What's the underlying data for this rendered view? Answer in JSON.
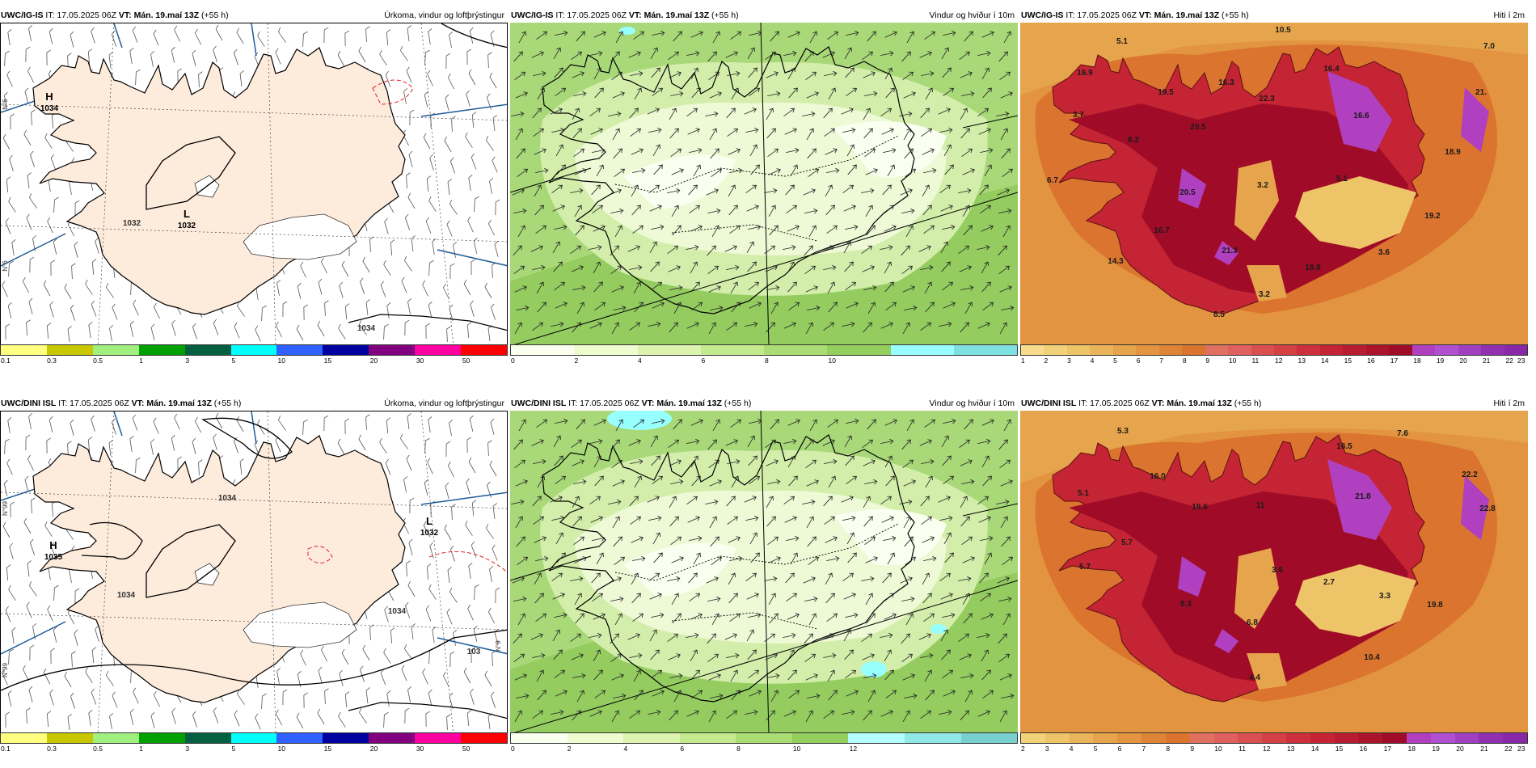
{
  "rows": [
    {
      "panels": [
        {
          "type": "precip",
          "model": "UWC/IG-IS",
          "it": "IT: 17.05.2025 06Z",
          "vt_label": "VT: Mán. 19.maí 13Z",
          "lead": "(+55 h)",
          "title": "Úrkoma, vindur og loftþrýstingur",
          "colorbar": {
            "colors": [
              "#ffff80",
              "#c8c800",
              "#a0f080",
              "#00a000",
              "#006040",
              "#00ffff",
              "#3060ff",
              "#0000a0",
              "#800080",
              "#ff00a0",
              "#ff0000"
            ],
            "ticks": [
              "0.1",
              "0.3",
              "0.5",
              "1",
              "3",
              "5",
              "10",
              "15",
              "20",
              "30",
              "50"
            ]
          },
          "pressure_labels": [
            {
              "letter": "H",
              "value": "1034"
            },
            {
              "letter": "L",
              "value": "1032"
            }
          ],
          "isobar_labels": [
            "1032",
            "1034"
          ],
          "lat_labels": [
            "N°6",
            "N°6"
          ]
        },
        {
          "type": "wind",
          "model": "UWC/IG-IS",
          "it": "IT: 17.05.2025 06Z",
          "vt_label": "VT: Mán. 19.maí 13Z",
          "lead": "(+55 h)",
          "title": "Vindur og hviður í 10m",
          "colorbar": {
            "colors": [
              "#fafff0",
              "#eefcd0",
              "#dcf4b0",
              "#c4ea90",
              "#acdc74",
              "#94ce5c",
              "#98ffff",
              "#7ee0e0"
            ],
            "ticks": [
              "0",
              "2",
              "4",
              "6",
              "8",
              "10"
            ]
          }
        },
        {
          "type": "temp",
          "model": "UWC/IG-IS",
          "it": "IT: 17.05.2025 06Z",
          "vt_label": "VT: Mán. 19.maí 13Z",
          "lead": "(+55 h)",
          "title": "Hiti í 2m",
          "colorbar": {
            "colors": [
              "#f6dc8c",
              "#f2d278",
              "#eec468",
              "#eab45a",
              "#e6a44c",
              "#e29440",
              "#de8436",
              "#da742e",
              "#e07060",
              "#e06060",
              "#da5050",
              "#d44044",
              "#cc303c",
              "#c42434",
              "#b81c30",
              "#ac142c",
              "#a00c28",
              "#b040c0",
              "#b050d0",
              "#a040c0",
              "#9030b0",
              "#8828a8"
            ],
            "ticks": [
              "1",
              "2",
              "3",
              "4",
              "5",
              "6",
              "7",
              "8",
              "9",
              "10",
              "11",
              "12",
              "13",
              "14",
              "15",
              "16",
              "17",
              "18",
              "19",
              "20",
              "21",
              "22",
              "23"
            ]
          },
          "labels": [
            {
              "v": "5.1",
              "x": 126,
              "y": 26
            },
            {
              "v": "10.5",
              "x": 325,
              "y": 12
            },
            {
              "v": "7.0",
              "x": 580,
              "y": 32
            },
            {
              "v": "16.9",
              "x": 80,
              "y": 65
            },
            {
              "v": "16.3",
              "x": 255,
              "y": 77
            },
            {
              "v": "16.4",
              "x": 385,
              "y": 60
            },
            {
              "v": "19.5",
              "x": 180,
              "y": 89
            },
            {
              "v": "22.3",
              "x": 305,
              "y": 97
            },
            {
              "v": "21.",
              "x": 570,
              "y": 89
            },
            {
              "v": "3.7",
              "x": 72,
              "y": 117
            },
            {
              "v": "16.6",
              "x": 422,
              "y": 118
            },
            {
              "v": "20.5",
              "x": 220,
              "y": 132
            },
            {
              "v": "8.2",
              "x": 140,
              "y": 148
            },
            {
              "v": "18.9",
              "x": 535,
              "y": 163
            },
            {
              "v": "6.7",
              "x": 40,
              "y": 198
            },
            {
              "v": "5.1",
              "x": 398,
              "y": 196
            },
            {
              "v": "3.2",
              "x": 300,
              "y": 204
            },
            {
              "v": "20.5",
              "x": 207,
              "y": 213
            },
            {
              "v": "19.2",
              "x": 510,
              "y": 242
            },
            {
              "v": "16.7",
              "x": 175,
              "y": 260
            },
            {
              "v": "21.3",
              "x": 259,
              "y": 285
            },
            {
              "v": "3.6",
              "x": 450,
              "y": 287
            },
            {
              "v": "14.3",
              "x": 118,
              "y": 298
            },
            {
              "v": "18.8",
              "x": 362,
              "y": 306
            },
            {
              "v": "3.2",
              "x": 302,
              "y": 339
            },
            {
              "v": "8.5",
              "x": 246,
              "y": 364
            }
          ]
        }
      ]
    },
    {
      "panels": [
        {
          "type": "precip",
          "model": "UWC/DINI ISL",
          "it": "IT: 17.05.2025 06Z",
          "vt_label": "VT: Mán. 19.maí 13Z",
          "lead": "(+55 h)",
          "title": "Úrkoma, vindur og loftþrýstingur",
          "colorbar": {
            "colors": [
              "#ffff80",
              "#c8c800",
              "#a0f080",
              "#00a000",
              "#006040",
              "#00ffff",
              "#3060ff",
              "#0000a0",
              "#800080",
              "#ff00a0",
              "#ff0000"
            ],
            "ticks": [
              "0.1",
              "0.3",
              "0.5",
              "1",
              "3",
              "5",
              "10",
              "15",
              "20",
              "30",
              "50"
            ]
          },
          "pressure_labels": [
            {
              "letter": "H",
              "value": "1035"
            },
            {
              "letter": "L",
              "value": "1032"
            }
          ],
          "isobar_labels": [
            "1034",
            "1034",
            "1034",
            "103"
          ],
          "lat_labels": [
            "N°99",
            "N°9",
            "N°99"
          ]
        },
        {
          "type": "wind",
          "model": "UWC/DINI ISL",
          "it": "IT: 17.05.2025 06Z",
          "vt_label": "VT: Mán. 19.maí 13Z",
          "lead": "(+55 h)",
          "title": "Vindur og hviður í 10m",
          "colorbar": {
            "colors": [
              "#fafff0",
              "#eefcd0",
              "#dcf4b0",
              "#c4ea90",
              "#acdc74",
              "#94ce5c",
              "#b4ffff",
              "#90e8e8",
              "#78d0d0"
            ],
            "ticks": [
              "0",
              "2",
              "4",
              "6",
              "8",
              "10",
              "12"
            ]
          }
        },
        {
          "type": "temp",
          "model": "UWC/DINI ISL",
          "it": "IT: 17.05.2025 06Z",
          "vt_label": "VT: Mán. 19.maí 13Z",
          "lead": "(+55 h)",
          "title": "Hiti í 2m",
          "colorbar": {
            "colors": [
              "#f2d278",
              "#eec468",
              "#eab45a",
              "#e6a44c",
              "#e29440",
              "#de8436",
              "#da742e",
              "#e07060",
              "#e06060",
              "#da5050",
              "#d44044",
              "#cc303c",
              "#c42434",
              "#b81c30",
              "#ac142c",
              "#a00c28",
              "#b040c0",
              "#b050d0",
              "#a040c0",
              "#9030b0",
              "#8828a8"
            ],
            "ticks": [
              "2",
              "3",
              "4",
              "5",
              "6",
              "7",
              "8",
              "9",
              "10",
              "11",
              "12",
              "13",
              "14",
              "15",
              "16",
              "17",
              "18",
              "19",
              "20",
              "21",
              "22",
              "23"
            ]
          },
          "labels": [
            {
              "v": "5.3",
              "x": 127,
              "y": 28
            },
            {
              "v": "7.6",
              "x": 473,
              "y": 31
            },
            {
              "v": "16.5",
              "x": 401,
              "y": 47
            },
            {
              "v": "16.0",
              "x": 170,
              "y": 84
            },
            {
              "v": "22.2",
              "x": 556,
              "y": 82
            },
            {
              "v": "5.1",
              "x": 78,
              "y": 105
            },
            {
              "v": "21.8",
              "x": 424,
              "y": 109
            },
            {
              "v": "19.6",
              "x": 222,
              "y": 122
            },
            {
              "v": "11",
              "x": 297,
              "y": 120
            },
            {
              "v": "22.8",
              "x": 578,
              "y": 124
            },
            {
              "v": "5.7",
              "x": 132,
              "y": 166
            },
            {
              "v": "5.7",
              "x": 80,
              "y": 196
            },
            {
              "v": "3.6",
              "x": 318,
              "y": 200
            },
            {
              "v": "2.7",
              "x": 382,
              "y": 215
            },
            {
              "v": "3.3",
              "x": 451,
              "y": 232
            },
            {
              "v": "8.3",
              "x": 205,
              "y": 242
            },
            {
              "v": "19.8",
              "x": 513,
              "y": 243
            },
            {
              "v": "6.8",
              "x": 287,
              "y": 265
            },
            {
              "v": "10.4",
              "x": 435,
              "y": 308
            },
            {
              "v": "4.4",
              "x": 290,
              "y": 333
            }
          ]
        }
      ]
    }
  ]
}
